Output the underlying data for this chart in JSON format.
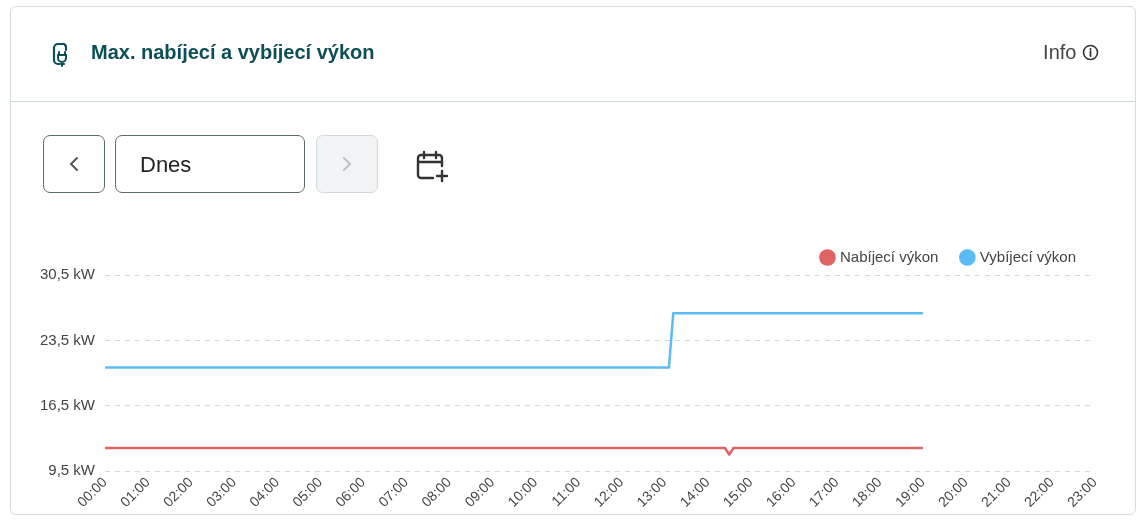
{
  "chart_data": {
    "type": "line",
    "title": "Max. nabíjecí a vybíjecí výkon",
    "annotations": [
      "Info",
      "Dnes"
    ],
    "series": [
      {
        "name": "Nabíjecí výkon",
        "color": "#e06464",
        "x": [
          0,
          14.4,
          14.5,
          14.6,
          19
        ],
        "values": [
          12,
          12,
          11.3,
          12,
          12
        ]
      },
      {
        "name": "Vybíjecí výkon",
        "color": "#5bbcf5",
        "x": [
          0,
          13.1,
          13.2,
          19
        ],
        "values": [
          20.6,
          20.6,
          26.4,
          26.4
        ]
      }
    ],
    "xlim": [
      0,
      23
    ],
    "xticks": [
      {
        "value": 0,
        "label": "00:00"
      },
      {
        "value": 1,
        "label": "01:00"
      },
      {
        "value": 2,
        "label": "02:00"
      },
      {
        "value": 3,
        "label": "03:00"
      },
      {
        "value": 4,
        "label": "04:00"
      },
      {
        "value": 5,
        "label": "05:00"
      },
      {
        "value": 6,
        "label": "06:00"
      },
      {
        "value": 7,
        "label": "07:00"
      },
      {
        "value": 8,
        "label": "08:00"
      },
      {
        "value": 9,
        "label": "09:00"
      },
      {
        "value": 10,
        "label": "10:00"
      },
      {
        "value": 11,
        "label": "11:00"
      },
      {
        "value": 12,
        "label": "12:00"
      },
      {
        "value": 13,
        "label": "13:00"
      },
      {
        "value": 14,
        "label": "14:00"
      },
      {
        "value": 15,
        "label": "15:00"
      },
      {
        "value": 16,
        "label": "16:00"
      },
      {
        "value": 17,
        "label": "17:00"
      },
      {
        "value": 18,
        "label": "18:00"
      },
      {
        "value": 19,
        "label": "19:00"
      },
      {
        "value": 20,
        "label": "20:00"
      },
      {
        "value": 21,
        "label": "21:00"
      },
      {
        "value": 22,
        "label": "22:00"
      },
      {
        "value": 23,
        "label": "23:00"
      }
    ],
    "ylim": [
      9.5,
      30.5
    ],
    "yticks": [
      {
        "value": 9.5,
        "label": "9,5 kW"
      },
      {
        "value": 16.5,
        "label": "16,5 kW"
      },
      {
        "value": 23.5,
        "label": "23,5 kW"
      },
      {
        "value": 30.5,
        "label": "30,5 kW"
      }
    ],
    "grid": "y",
    "legend": "top right",
    "marker": "none",
    "line_style": "solid"
  }
}
